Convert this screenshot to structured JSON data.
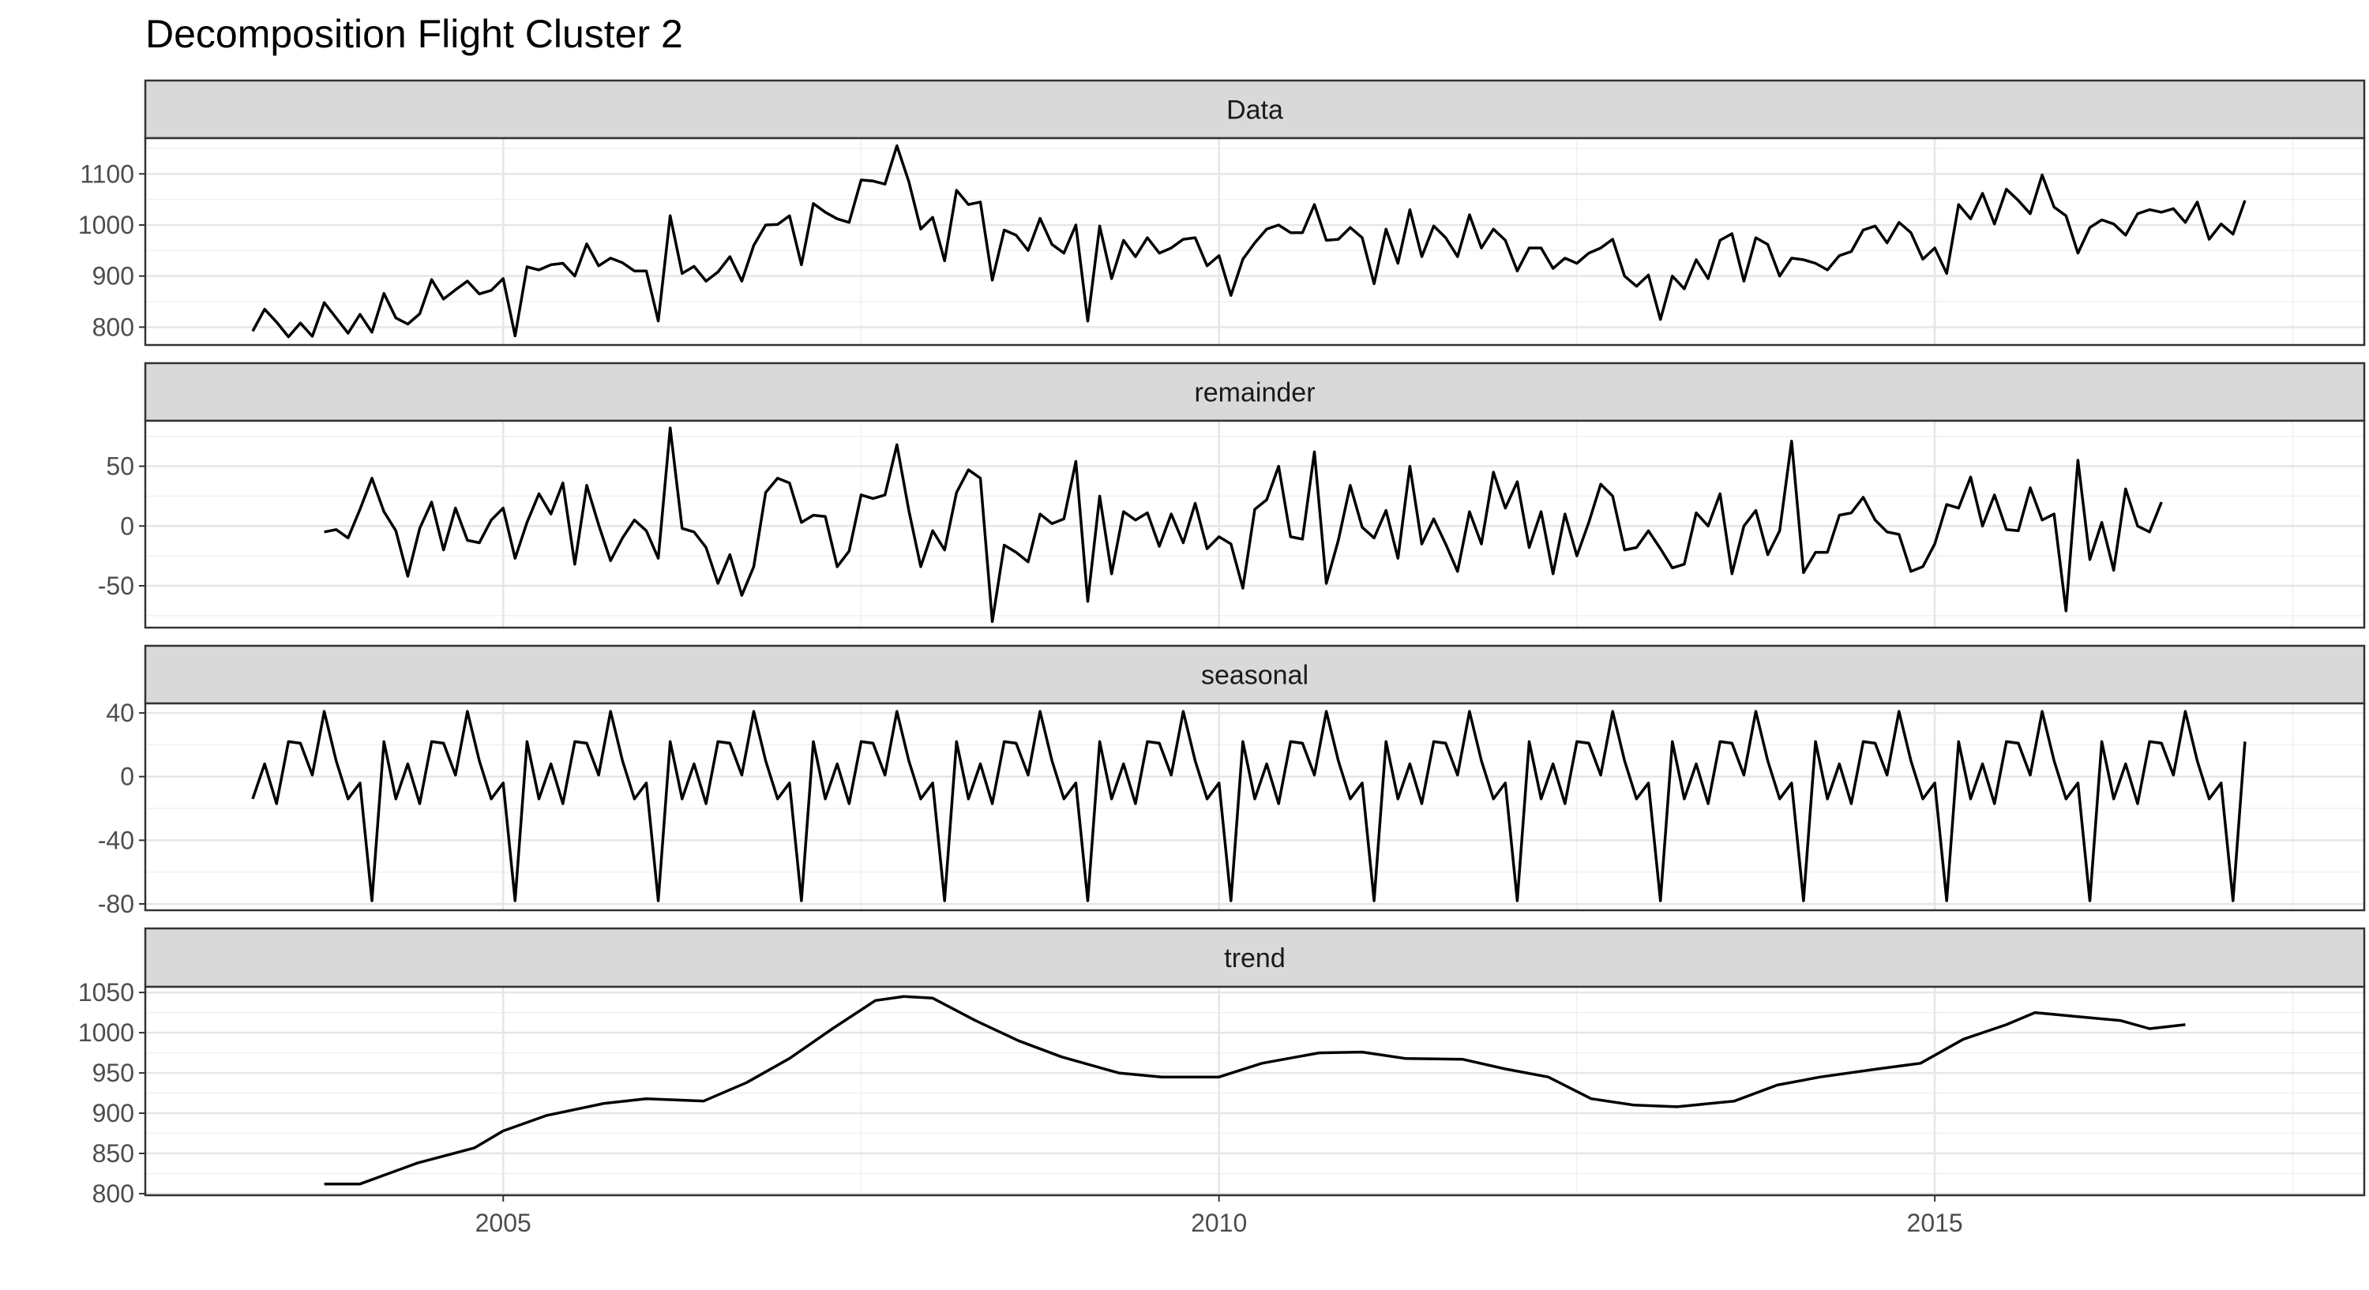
{
  "chart_data": {
    "type": "line",
    "title": "Decomposition Flight Cluster 2",
    "xlabel": "",
    "ylabel": "",
    "xlim": [
      2002.5,
      2018.0
    ],
    "x_ticks": [
      2005,
      2010,
      2015
    ],
    "x_tick_labels": [
      "2005",
      "2010",
      "2015"
    ],
    "grid": true,
    "panels": [
      {
        "name": "Data",
        "ylim": [
          765,
          1170
        ],
        "y_ticks": [
          800,
          900,
          1000,
          1100
        ],
        "y_tick_labels": [
          "800",
          "900",
          "1000",
          "1100"
        ],
        "start": 2003.25,
        "values": [
          792,
          835,
          810,
          781,
          808,
          782,
          848,
          818,
          788,
          825,
          790,
          866,
          818,
          806,
          826,
          893,
          855,
          873,
          890,
          865,
          872,
          895,
          783,
          918,
          912,
          922,
          925,
          900,
          963,
          920,
          935,
          926,
          910,
          910,
          812,
          1018,
          905,
          919,
          890,
          908,
          938,
          890,
          960,
          1000,
          1001,
          1018,
          922,
          1042,
          1025,
          1012,
          1005,
          1088,
          1086,
          1080,
          1155,
          1085,
          992,
          1015,
          930,
          1068,
          1040,
          1045,
          892,
          990,
          980,
          950,
          1013,
          962,
          945,
          1000,
          812,
          998,
          895,
          970,
          938,
          975,
          945,
          955,
          972,
          975,
          920,
          940,
          862,
          933,
          965,
          992,
          1000,
          985,
          985,
          1040,
          970,
          972,
          995,
          975,
          885,
          992,
          925,
          1030,
          938,
          998,
          975,
          938,
          1020,
          955,
          992,
          970,
          910,
          955,
          955,
          915,
          935,
          925,
          945,
          955,
          972,
          900,
          880,
          902,
          815,
          900,
          875,
          932,
          895,
          970,
          983,
          890,
          975,
          962,
          900,
          935,
          932,
          925,
          912,
          940,
          948,
          990,
          998,
          965,
          1005,
          985,
          933,
          955,
          905,
          1040,
          1012,
          1062,
          1002,
          1070,
          1048,
          1022,
          1098,
          1035,
          1018,
          945,
          995,
          1010,
          1002,
          980,
          1022,
          1030,
          1025,
          1032,
          1005,
          1045,
          972,
          1002,
          982,
          1048
        ]
      },
      {
        "name": "remainder",
        "ylim": [
          -85,
          88
        ],
        "y_ticks": [
          -50,
          0,
          50
        ],
        "y_tick_labels": [
          "-50",
          "0",
          "50"
        ],
        "start": 2003.75,
        "values": [
          -5,
          -3,
          -10,
          14,
          40,
          12,
          -4,
          -42,
          -2,
          20,
          -20,
          15,
          -12,
          -14,
          5,
          15,
          -27,
          3,
          27,
          10,
          36,
          -32,
          34,
          1,
          -29,
          -10,
          5,
          -4,
          -27,
          82,
          -2,
          -5,
          -18,
          -48,
          -24,
          -58,
          -34,
          28,
          40,
          36,
          3,
          9,
          8,
          -34,
          -21,
          26,
          23,
          26,
          68,
          13,
          -34,
          -4,
          -20,
          28,
          47,
          40,
          -80,
          -16,
          -22,
          -30,
          10,
          2,
          6,
          54,
          -63,
          25,
          -40,
          12,
          5,
          11,
          -17,
          10,
          -14,
          19,
          -19,
          -9,
          -15,
          -52,
          14,
          22,
          50,
          -9,
          -11,
          62,
          -48,
          -12,
          34,
          -1,
          -10,
          13,
          -27,
          50,
          -15,
          6,
          -15,
          -38,
          12,
          -15,
          45,
          15,
          37,
          -18,
          12,
          -40,
          10,
          -25,
          3,
          35,
          25,
          -20,
          -18,
          -4,
          -19,
          -35,
          -32,
          11,
          0,
          27,
          -40,
          0,
          13,
          -24,
          -4,
          71,
          -39,
          -22,
          -22,
          9,
          11,
          24,
          5,
          -5,
          -7,
          -38,
          -34,
          -15,
          18,
          15,
          41,
          0,
          26,
          -3,
          -4,
          32,
          5,
          10,
          -71,
          55,
          -28,
          3,
          -37,
          31,
          0,
          -5,
          20
        ]
      },
      {
        "name": "seasonal",
        "ylim": [
          -84,
          46
        ],
        "y_ticks": [
          -80,
          -40,
          0,
          40
        ],
        "y_tick_labels": [
          "-80",
          "-40",
          "0",
          "40"
        ],
        "start": 2003.25,
        "pattern": [
          -14,
          8,
          -17,
          22,
          21,
          1,
          41,
          10,
          -14,
          -4,
          -78,
          22
        ],
        "cycles": 14,
        "values": []
      },
      {
        "name": "trend",
        "ylim": [
          798,
          1057
        ],
        "y_ticks": [
          800,
          850,
          900,
          950,
          1000,
          1050
        ],
        "y_tick_labels": [
          "800",
          "850",
          "900",
          "950",
          "1000",
          "1050"
        ],
        "x": [
          2003.75,
          2004.0,
          2004.4,
          2004.8,
          2005.0,
          2005.3,
          2005.7,
          2006.0,
          2006.4,
          2006.7,
          2007.0,
          2007.3,
          2007.6,
          2007.8,
          2008.0,
          2008.3,
          2008.6,
          2008.9,
          2009.3,
          2009.6,
          2010.0,
          2010.3,
          2010.7,
          2011.0,
          2011.3,
          2011.7,
          2012.0,
          2012.3,
          2012.6,
          2012.9,
          2013.2,
          2013.6,
          2013.9,
          2014.2,
          2014.6,
          2014.9,
          2015.2,
          2015.5,
          2015.7,
          2016.0,
          2016.3,
          2016.5,
          2016.75
        ],
        "values": [
          812,
          812,
          838,
          857,
          878,
          897,
          912,
          918,
          915,
          938,
          968,
          1005,
          1040,
          1045,
          1043,
          1015,
          990,
          970,
          950,
          945,
          945,
          962,
          975,
          976,
          968,
          967,
          955,
          945,
          918,
          910,
          908,
          915,
          935,
          945,
          955,
          962,
          992,
          1010,
          1025,
          1020,
          1015,
          1005,
          1010
        ]
      }
    ]
  }
}
